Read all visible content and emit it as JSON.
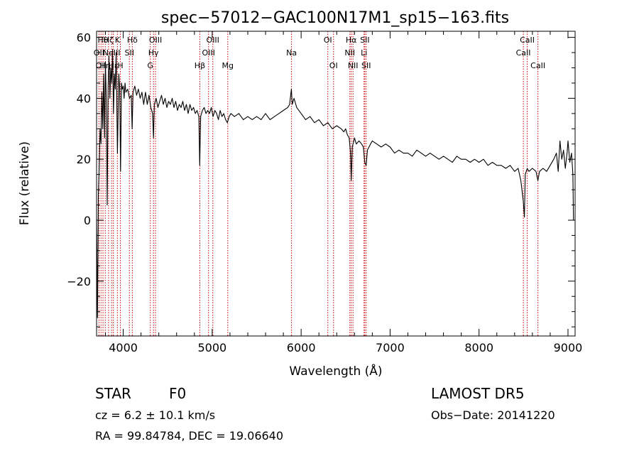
{
  "chart_data": {
    "type": "line",
    "title": "spec−57012−GAC100N17M1_sp15−163.fits",
    "xlabel": "Wavelength (Å)",
    "ylabel": "Flux (relative)",
    "xlim": [
      3700,
      9080
    ],
    "ylim": [
      -38,
      62
    ],
    "xticks": [
      {
        "value": 4000,
        "label": "4000"
      },
      {
        "value": 5000,
        "label": "5000"
      },
      {
        "value": 6000,
        "label": "6000"
      },
      {
        "value": 7000,
        "label": "7000"
      },
      {
        "value": 8000,
        "label": "8000"
      },
      {
        "value": 9000,
        "label": "9000"
      }
    ],
    "yticks": [
      {
        "value": -20,
        "label": "−20"
      },
      {
        "value": 0,
        "label": "0"
      },
      {
        "value": 20,
        "label": "20"
      },
      {
        "value": 40,
        "label": "40"
      },
      {
        "value": 60,
        "label": "60"
      }
    ],
    "grid": false,
    "series": [
      {
        "color": "#000000",
        "points": [
          [
            3700,
            0
          ],
          [
            3710,
            -32
          ],
          [
            3720,
            8
          ],
          [
            3730,
            18
          ],
          [
            3740,
            30
          ],
          [
            3750,
            25
          ],
          [
            3760,
            42
          ],
          [
            3770,
            30
          ],
          [
            3780,
            48
          ],
          [
            3790,
            27
          ],
          [
            3800,
            52
          ],
          [
            3810,
            38
          ],
          [
            3820,
            5
          ],
          [
            3830,
            44
          ],
          [
            3840,
            54
          ],
          [
            3850,
            40
          ],
          [
            3860,
            50
          ],
          [
            3870,
            45
          ],
          [
            3880,
            56
          ],
          [
            3890,
            35
          ],
          [
            3900,
            48
          ],
          [
            3910,
            43
          ],
          [
            3920,
            55
          ],
          [
            3935,
            22
          ],
          [
            3950,
            48
          ],
          [
            3960,
            43
          ],
          [
            3970,
            16
          ],
          [
            3980,
            45
          ],
          [
            3990,
            43
          ],
          [
            4000,
            44
          ],
          [
            4010,
            40
          ],
          [
            4020,
            45
          ],
          [
            4030,
            42
          ],
          [
            4050,
            43
          ],
          [
            4070,
            40
          ],
          [
            4090,
            41
          ],
          [
            4100,
            30
          ],
          [
            4110,
            42
          ],
          [
            4130,
            44
          ],
          [
            4150,
            41
          ],
          [
            4170,
            43
          ],
          [
            4190,
            40
          ],
          [
            4210,
            42
          ],
          [
            4230,
            38
          ],
          [
            4250,
            42
          ],
          [
            4270,
            38
          ],
          [
            4290,
            41
          ],
          [
            4310,
            37
          ],
          [
            4330,
            35
          ],
          [
            4340,
            27
          ],
          [
            4350,
            38
          ],
          [
            4370,
            40
          ],
          [
            4390,
            37
          ],
          [
            4410,
            39
          ],
          [
            4430,
            41
          ],
          [
            4450,
            38
          ],
          [
            4470,
            40
          ],
          [
            4490,
            37
          ],
          [
            4510,
            39
          ],
          [
            4530,
            38
          ],
          [
            4550,
            40
          ],
          [
            4570,
            37
          ],
          [
            4590,
            39
          ],
          [
            4610,
            36
          ],
          [
            4630,
            38
          ],
          [
            4650,
            37
          ],
          [
            4670,
            39
          ],
          [
            4690,
            36
          ],
          [
            4710,
            38
          ],
          [
            4730,
            35
          ],
          [
            4750,
            38
          ],
          [
            4770,
            36
          ],
          [
            4790,
            37
          ],
          [
            4810,
            35
          ],
          [
            4830,
            36
          ],
          [
            4850,
            34
          ],
          [
            4860,
            18
          ],
          [
            4870,
            34
          ],
          [
            4890,
            36
          ],
          [
            4910,
            37
          ],
          [
            4930,
            35
          ],
          [
            4950,
            36
          ],
          [
            4970,
            35
          ],
          [
            4990,
            37
          ],
          [
            5010,
            34
          ],
          [
            5030,
            36
          ],
          [
            5050,
            35
          ],
          [
            5070,
            33
          ],
          [
            5090,
            36
          ],
          [
            5110,
            34
          ],
          [
            5130,
            35
          ],
          [
            5150,
            33
          ],
          [
            5170,
            32
          ],
          [
            5190,
            34
          ],
          [
            5210,
            35
          ],
          [
            5250,
            34
          ],
          [
            5300,
            35
          ],
          [
            5350,
            33
          ],
          [
            5400,
            34
          ],
          [
            5450,
            33
          ],
          [
            5500,
            34
          ],
          [
            5550,
            33
          ],
          [
            5600,
            35
          ],
          [
            5650,
            33
          ],
          [
            5700,
            34
          ],
          [
            5750,
            35
          ],
          [
            5800,
            36
          ],
          [
            5850,
            37
          ],
          [
            5870,
            38
          ],
          [
            5890,
            43
          ],
          [
            5900,
            38
          ],
          [
            5920,
            40
          ],
          [
            5950,
            37
          ],
          [
            6000,
            35
          ],
          [
            6050,
            33
          ],
          [
            6100,
            34
          ],
          [
            6150,
            32
          ],
          [
            6200,
            33
          ],
          [
            6250,
            31
          ],
          [
            6300,
            32
          ],
          [
            6350,
            30
          ],
          [
            6400,
            31
          ],
          [
            6450,
            30
          ],
          [
            6480,
            29
          ],
          [
            6500,
            30
          ],
          [
            6520,
            28
          ],
          [
            6540,
            27
          ],
          [
            6555,
            22
          ],
          [
            6563,
            13
          ],
          [
            6575,
            24
          ],
          [
            6600,
            27
          ],
          [
            6620,
            25
          ],
          [
            6650,
            26
          ],
          [
            6680,
            25
          ],
          [
            6700,
            24
          ],
          [
            6715,
            19
          ],
          [
            6731,
            18
          ],
          [
            6745,
            23
          ],
          [
            6780,
            25
          ],
          [
            6800,
            26
          ],
          [
            6850,
            25
          ],
          [
            6900,
            24
          ],
          [
            6950,
            25
          ],
          [
            7000,
            24
          ],
          [
            7050,
            22
          ],
          [
            7100,
            23
          ],
          [
            7150,
            22
          ],
          [
            7200,
            22
          ],
          [
            7250,
            21
          ],
          [
            7300,
            23
          ],
          [
            7350,
            22
          ],
          [
            7400,
            21
          ],
          [
            7450,
            22
          ],
          [
            7500,
            21
          ],
          [
            7550,
            20
          ],
          [
            7600,
            21
          ],
          [
            7650,
            20
          ],
          [
            7700,
            19
          ],
          [
            7750,
            21
          ],
          [
            7800,
            20
          ],
          [
            7850,
            20
          ],
          [
            7900,
            19
          ],
          [
            7950,
            20
          ],
          [
            8000,
            19
          ],
          [
            8050,
            20
          ],
          [
            8100,
            18
          ],
          [
            8150,
            19
          ],
          [
            8200,
            18
          ],
          [
            8250,
            18
          ],
          [
            8300,
            17
          ],
          [
            8350,
            18
          ],
          [
            8400,
            16
          ],
          [
            8440,
            17
          ],
          [
            8470,
            13
          ],
          [
            8498,
            6
          ],
          [
            8510,
            1
          ],
          [
            8520,
            15
          ],
          [
            8542,
            17
          ],
          [
            8560,
            16
          ],
          [
            8600,
            17
          ],
          [
            8640,
            16
          ],
          [
            8662,
            13
          ],
          [
            8680,
            16
          ],
          [
            8720,
            17
          ],
          [
            8760,
            16
          ],
          [
            8800,
            18
          ],
          [
            8840,
            20
          ],
          [
            8870,
            22
          ],
          [
            8890,
            16
          ],
          [
            8910,
            26
          ],
          [
            8930,
            20
          ],
          [
            8950,
            23
          ],
          [
            8970,
            17
          ],
          [
            8990,
            22
          ],
          [
            9000,
            26
          ],
          [
            9020,
            19
          ],
          [
            9040,
            22
          ],
          [
            9055,
            15
          ],
          [
            9062,
            0
          ]
        ]
      }
    ],
    "lines": [
      {
        "w": 3727,
        "label": "OII",
        "row": 2
      },
      {
        "w": 3750,
        "label": "OII",
        "row": 3
      },
      {
        "w": 3772,
        "label": "Hθ",
        "row": 1
      },
      {
        "w": 3798,
        "label": "Hη",
        "row": 3
      },
      {
        "w": 3835,
        "label": "Hζ",
        "row": 1
      },
      {
        "w": 3869,
        "label": "NeIII",
        "row": 2
      },
      {
        "w": 3889,
        "label": "Hε",
        "row": 3
      },
      {
        "w": 3934,
        "label": "K",
        "row": 1
      },
      {
        "w": 3968,
        "label": "H",
        "row": 3
      },
      {
        "w": 4069,
        "label": "SII",
        "row": 2
      },
      {
        "w": 4102,
        "label": "Hδ",
        "row": 1
      },
      {
        "w": 4304,
        "label": "G",
        "row": 3
      },
      {
        "w": 4340,
        "label": "Hγ",
        "row": 2
      },
      {
        "w": 4363,
        "label": "OIII",
        "row": 1
      },
      {
        "w": 4861,
        "label": "Hβ",
        "row": 3
      },
      {
        "w": 4959,
        "label": "OIII",
        "row": 2
      },
      {
        "w": 5007,
        "label": "OIII",
        "row": 1
      },
      {
        "w": 5175,
        "label": "Mg",
        "row": 3
      },
      {
        "w": 5892,
        "label": "Na",
        "row": 2
      },
      {
        "w": 6300,
        "label": "OI",
        "row": 1
      },
      {
        "w": 6364,
        "label": "OI",
        "row": 3
      },
      {
        "w": 6548,
        "label": "NII",
        "row": 2
      },
      {
        "w": 6563,
        "label": "Hα",
        "row": 1
      },
      {
        "w": 6583,
        "label": "NII",
        "row": 3
      },
      {
        "w": 6707,
        "label": "Li",
        "row": 2
      },
      {
        "w": 6716,
        "label": "SII",
        "row": 1
      },
      {
        "w": 6731,
        "label": "SII",
        "row": 3
      },
      {
        "w": 8498,
        "label": "CaII",
        "row": 2
      },
      {
        "w": 8542,
        "label": "CaII",
        "row": 1
      },
      {
        "w": 8662,
        "label": "CaII",
        "row": 3
      }
    ]
  },
  "info": {
    "class_label": "STAR",
    "subclass": "F0",
    "survey": "LAMOST  DR5",
    "cz": "cz = 6.2 ± 10.1 km/s",
    "obs_date": "Obs−Date: 20141220",
    "radec": "RA =  99.84784, DEC =  19.06640"
  },
  "style": {
    "line_marker_color": "#cc0000",
    "spectrum_color": "#000000"
  }
}
